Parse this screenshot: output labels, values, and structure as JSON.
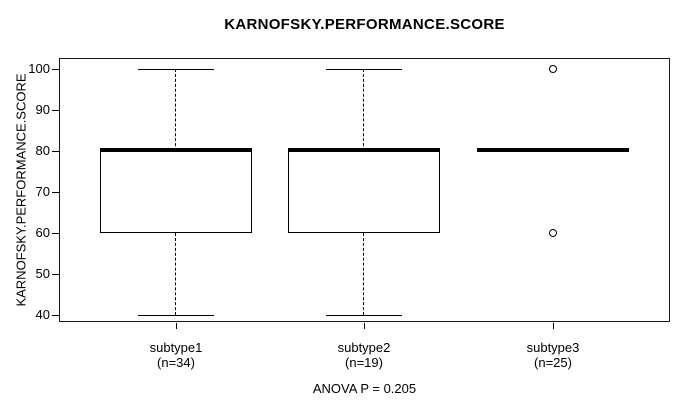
{
  "chart_data": {
    "type": "boxplot",
    "title": "KARNOFSKY.PERFORMANCE.SCORE",
    "ylabel": "KARNOFSKY.PERFORMANCE.SCORE",
    "xlabel": "",
    "footer": "ANOVA P = 0.205",
    "ylim": [
      40,
      100
    ],
    "yticks": [
      40,
      50,
      60,
      70,
      80,
      90,
      100
    ],
    "grid": false,
    "legend": false,
    "categories": [
      "subtype1",
      "subtype2",
      "subtype3"
    ],
    "groups": [
      {
        "label": "subtype1",
        "sublabel": "(n=34)",
        "n": 34,
        "whisker_low": 40,
        "q1": 60,
        "median": 80,
        "q3": 80,
        "whisker_high": 100,
        "outliers": []
      },
      {
        "label": "subtype2",
        "sublabel": "(n=19)",
        "n": 19,
        "whisker_low": 40,
        "q1": 60,
        "median": 80,
        "q3": 80,
        "whisker_high": 100,
        "outliers": []
      },
      {
        "label": "subtype3",
        "sublabel": "(n=25)",
        "n": 25,
        "whisker_low": 80,
        "q1": 80,
        "median": 80,
        "q3": 80,
        "whisker_high": 80,
        "outliers": [
          100,
          60
        ]
      }
    ],
    "colors": {
      "foreground": "#000000",
      "background": "#ffffff"
    }
  }
}
